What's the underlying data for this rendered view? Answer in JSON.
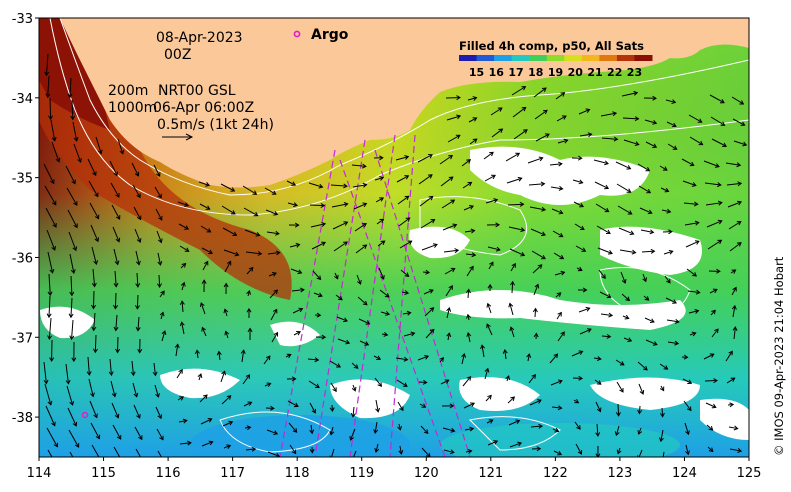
{
  "map": {
    "date": "08-Apr-2023",
    "hour": "00Z",
    "contour_200m": "200m",
    "contour_1000m": "1000m",
    "current_source": "NRT00 GSL",
    "current_time": "06-Apr 06:00Z",
    "scale_vector": "0.5m/s (1kt 24h)",
    "argo_label": "Argo",
    "credit": "© IMOS 09-Apr-2023 21:04 Hobart"
  },
  "colorbar": {
    "title": "Filled 4h comp, p50, All Sats",
    "ticks": [
      "15",
      "16",
      "17",
      "18",
      "19",
      "20",
      "21",
      "22",
      "23"
    ],
    "colors": [
      "#1d1cae",
      "#1f5bd8",
      "#1ea0e6",
      "#22c9c0",
      "#3fcf5c",
      "#8fdc2b",
      "#d8e01e",
      "#f3b61c",
      "#e07a10",
      "#b4310a",
      "#8a0f07"
    ]
  },
  "axes": {
    "x_ticks": [
      "114",
      "115",
      "116",
      "117",
      "118",
      "119",
      "120",
      "121",
      "122",
      "123",
      "124",
      "125"
    ],
    "y_ticks": [
      "-33",
      "-34",
      "-35",
      "-36",
      "-37",
      "-38"
    ],
    "x_range": [
      114,
      125
    ],
    "y_range": [
      -38.5,
      -33
    ]
  },
  "colors": {
    "land": "#fbc89a",
    "argo": "#e21cc8",
    "contour": "#ffffff",
    "track": "#c02bd6"
  }
}
